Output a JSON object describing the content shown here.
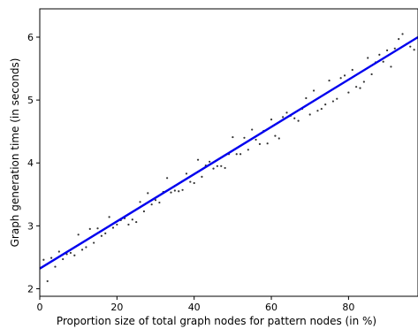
{
  "chart_data": {
    "type": "scatter",
    "xlabel": "Proportion size of total graph nodes for pattern nodes (in %)",
    "ylabel": "Graph generation time (in seconds)",
    "xlim": [
      0,
      98
    ],
    "ylim": [
      1.88,
      6.45
    ],
    "x_ticks": [
      0,
      20,
      40,
      60,
      80
    ],
    "y_ticks": [
      2,
      3,
      4,
      5,
      6
    ],
    "grid": false,
    "colors": {
      "points": "#333333",
      "fit_line": "#0000ee",
      "axes": "#000000"
    },
    "series": [
      {
        "kind": "points",
        "x": [
          1,
          2,
          3,
          4,
          5,
          6,
          7,
          8,
          9,
          10,
          11,
          12,
          13,
          14,
          15,
          16,
          17,
          18,
          19,
          20,
          21,
          22,
          23,
          24,
          25,
          26,
          27,
          28,
          29,
          30,
          31,
          32,
          33,
          34,
          35,
          36,
          37,
          38,
          39,
          40,
          41,
          42,
          43,
          44,
          45,
          46,
          47,
          48,
          49,
          50,
          51,
          52,
          53,
          54,
          55,
          56,
          57,
          58,
          59,
          60,
          61,
          62,
          63,
          64,
          65,
          66,
          67,
          68,
          69,
          70,
          71,
          72,
          73,
          74,
          75,
          76,
          77,
          78,
          79,
          80,
          81,
          82,
          83,
          84,
          85,
          86,
          87,
          88,
          89,
          90,
          91,
          92,
          93,
          94,
          95,
          96,
          97
        ],
        "y": [
          2.46,
          2.12,
          2.49,
          2.35,
          2.59,
          2.47,
          2.55,
          2.57,
          2.53,
          2.86,
          2.62,
          2.66,
          2.95,
          2.73,
          2.96,
          2.84,
          2.88,
          3.14,
          2.97,
          3.02,
          3.09,
          3.12,
          3.02,
          3.1,
          3.06,
          3.38,
          3.23,
          3.52,
          3.34,
          3.41,
          3.37,
          3.54,
          3.76,
          3.53,
          3.56,
          3.55,
          3.57,
          3.83,
          3.7,
          3.68,
          4.05,
          3.78,
          3.96,
          4.02,
          3.91,
          3.95,
          3.95,
          3.92,
          4.14,
          4.41,
          4.14,
          4.14,
          4.4,
          4.21,
          4.53,
          4.37,
          4.3,
          4.51,
          4.31,
          4.69,
          4.43,
          4.39,
          4.73,
          4.8,
          4.75,
          4.71,
          4.67,
          4.86,
          5.03,
          4.77,
          5.15,
          4.83,
          4.86,
          4.93,
          5.31,
          4.98,
          5.02,
          5.35,
          5.39,
          5.12,
          5.48,
          5.21,
          5.19,
          5.29,
          5.67,
          5.41,
          5.6,
          5.72,
          5.61,
          5.79,
          5.53,
          5.82,
          5.97,
          6.05,
          5.89,
          5.85,
          5.8
        ]
      },
      {
        "kind": "fit_line",
        "x": [
          0,
          98
        ],
        "y": [
          2.32,
          6.0
        ]
      }
    ]
  }
}
